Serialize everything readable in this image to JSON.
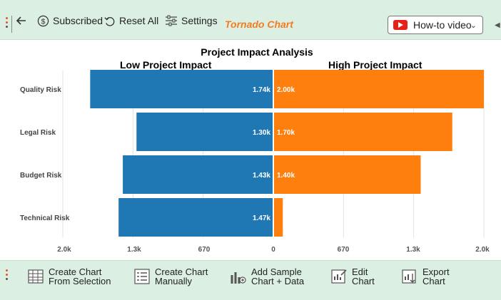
{
  "toolbar": {
    "subscribed_label": "Subscribed",
    "reset_label": "Reset All",
    "settings_label": "Settings",
    "brand_label": "Tornado Chart",
    "howto_label": "How-to video"
  },
  "bottom_toolbar": {
    "create_selection": [
      "Create Chart",
      "From Selection"
    ],
    "create_manual": [
      "Create Chart",
      "Manually"
    ],
    "add_sample": [
      "Add Sample",
      "Chart + Data"
    ],
    "edit_chart": [
      "Edit",
      "Chart"
    ],
    "export_chart": [
      "Export",
      "Chart"
    ]
  },
  "colors": {
    "low": "#1f77b4",
    "high": "#ff7f0e",
    "brand": "#f47c20",
    "toolbar_bg": "#dcefe3"
  },
  "chart_data": {
    "type": "bar",
    "orientation": "horizontal-tornado",
    "title": "Project Impact Analysis",
    "left_label": "Low Project Impact",
    "right_label": "High Project Impact",
    "categories": [
      "Quality Risk",
      "Legal Risk",
      "Budget Risk",
      "Technical Risk"
    ],
    "series": [
      {
        "name": "Low Project Impact",
        "values": [
          1740,
          1300,
          1430,
          1470
        ],
        "labels": [
          "1.74k",
          "1.30k",
          "1.43k",
          "1.47k"
        ]
      },
      {
        "name": "High Project Impact",
        "values": [
          2000,
          1700,
          1400,
          90
        ],
        "labels": [
          "2.00k",
          "1.70k",
          "1.40k",
          ""
        ]
      }
    ],
    "xlim": [
      -2000,
      2000
    ],
    "ticks": [
      "2.0k",
      "1.3k",
      "670",
      "0",
      "670",
      "1.3k",
      "2.0k"
    ],
    "grid": true
  }
}
